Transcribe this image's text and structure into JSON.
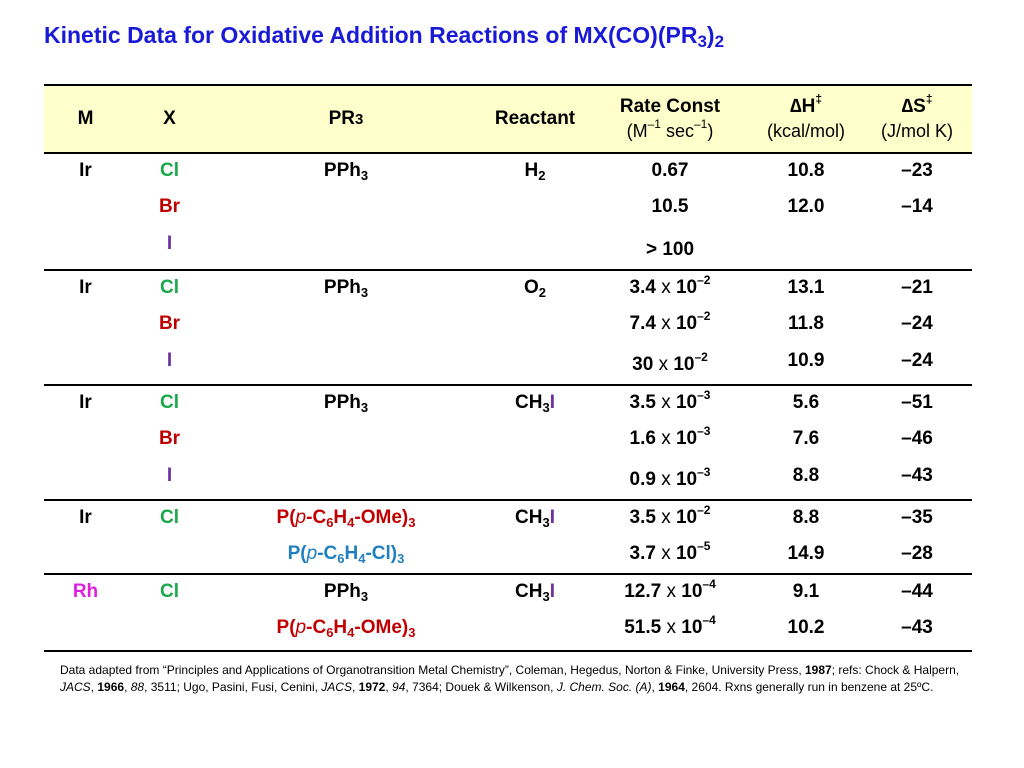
{
  "title": "Kinetic Data for Oxidative Addition Reactions of MX(CO)(PR",
  "title_sub1": "3",
  "title_close": ")",
  "title_sub2": "2",
  "header": {
    "m": "M",
    "x": "X",
    "pr": "PR",
    "pr_sub": "3",
    "reactant": "Reactant",
    "rate_const": "Rate Const",
    "rate_units": "(M",
    "rate_units_exp1": "–1",
    "rate_units_mid": " sec",
    "rate_units_exp2": "–1",
    "rate_units_close": ")",
    "dh": "∆H",
    "dh_sup": "‡",
    "dh_units": "(kcal/mol)",
    "ds": "∆S",
    "ds_sup": "‡",
    "ds_units": "(J/mol K)"
  },
  "rows": [
    {
      "m": "Ir",
      "x": "Cl",
      "pr": "PPh",
      "pr_sub": "3",
      "reactant": "H",
      "reactant_sub": "2",
      "rate": "0.67",
      "dh": "10.8",
      "ds": "–23"
    },
    {
      "x": "Br",
      "rate": "10.5",
      "dh": "12.0",
      "ds": "–14"
    },
    {
      "x": "I",
      "rate": "> 100"
    },
    {
      "m": "Ir",
      "x": "Cl",
      "pr": "PPh",
      "pr_sub": "3",
      "reactant": "O",
      "reactant_sub": "2",
      "rate_mant": "3.4",
      "rate_exp": "–2",
      "dh": "13.1",
      "ds": "–21"
    },
    {
      "x": "Br",
      "rate_mant": "7.4",
      "rate_exp": "–2",
      "dh": "11.8",
      "ds": "–24"
    },
    {
      "x": "I",
      "rate_mant": "30",
      "rate_exp": "–2",
      "dh": "10.9",
      "ds": "–24"
    },
    {
      "m": "Ir",
      "x": "Cl",
      "pr": "PPh",
      "pr_sub": "3",
      "reactant": "CH",
      "reactant_sub": "3",
      "reactant_tail": "I",
      "rate_mant": "3.5",
      "rate_exp": "–3",
      "dh": "5.6",
      "ds": "–51"
    },
    {
      "x": "Br",
      "rate_mant": "1.6",
      "rate_exp": "–3",
      "dh": "7.6",
      "ds": "–46"
    },
    {
      "x": "I",
      "rate_mant": "0.9",
      "rate_exp": "–3",
      "dh": "8.8",
      "ds": "–43"
    },
    {
      "m": "Ir",
      "x": "Cl",
      "pr_a": "P(",
      "pr_p": "p",
      "pr_b": "-C",
      "pr_s1": "6",
      "pr_c": "H",
      "pr_s2": "4",
      "pr_d": "-OMe)",
      "pr_s3": "3",
      "reactant": "CH",
      "reactant_sub": "3",
      "reactant_tail": "I",
      "rate_mant": "3.5",
      "rate_exp": "–2",
      "dh": "8.8",
      "ds": "–35"
    },
    {
      "pr_a": "P(",
      "pr_p": "p",
      "pr_b": "-C",
      "pr_s1": "6",
      "pr_c": "H",
      "pr_s2": "4",
      "pr_d": "-Cl)",
      "pr_s3": "3",
      "rate_mant": "3.7",
      "rate_exp": "–5",
      "dh": "14.9",
      "ds": "–28"
    },
    {
      "m": "Rh",
      "x": "Cl",
      "pr": "PPh",
      "pr_sub": "3",
      "reactant": "CH",
      "reactant_sub": "3",
      "reactant_tail": "I",
      "rate_mant": "12.7",
      "rate_exp": "–4",
      "dh": "9.1",
      "ds": "–44"
    },
    {
      "pr_a": "P(",
      "pr_p": "p",
      "pr_b": "-C",
      "pr_s1": "6",
      "pr_c": "H",
      "pr_s2": "4",
      "pr_d": "-OMe)",
      "pr_s3": "3",
      "rate_mant": "51.5",
      "rate_exp": "–4",
      "dh": "10.2",
      "ds": "–43"
    }
  ],
  "times_sign": "x",
  "ten": "10",
  "footnote": {
    "p1": "Data adapted from “Principles and Applications of Organotransition Metal Chemistry”, Coleman, Hegedus, Norton & Finke, University Press, ",
    "b1": "1987",
    "p2": "; refs: Chock & Halpern, ",
    "i1": "JACS",
    "p3": ", ",
    "b2": "1966",
    "p4": ", ",
    "i2": "88",
    "p5": ", 3511; Ugo, Pasini, Fusi, Cenini, ",
    "i3": "JACS",
    "p6": ", ",
    "b3": "1972",
    "p7": ", ",
    "i4": "94",
    "p8": ", 7364; Douek & Wilkenson, ",
    "i5": "J. Chem. Soc. (A)",
    "p9": ", ",
    "b4": "1964",
    "p10": ", 2604.  Rxns generally run in benzene at 25ºC."
  }
}
